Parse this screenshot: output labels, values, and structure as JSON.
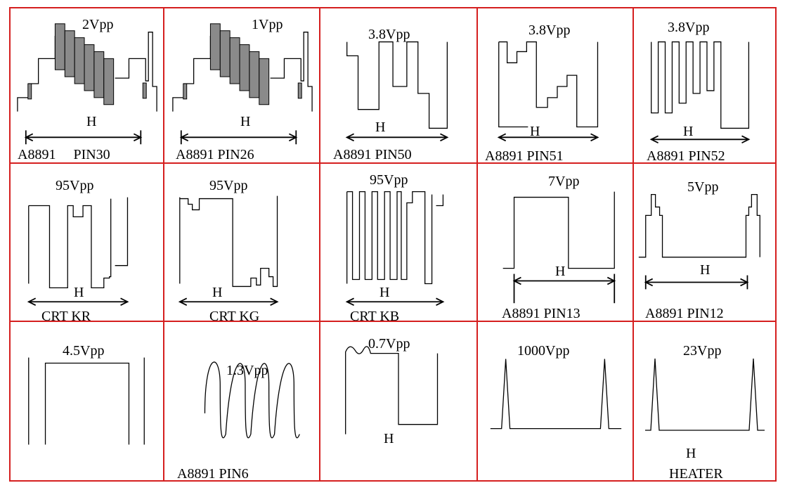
{
  "colors": {
    "grid_border": "#d51f1f",
    "waveform": "#000000",
    "burst_fill": "#8a8a8a"
  },
  "cells": [
    {
      "amplitude": "2Vpp",
      "h_marker": "H",
      "label": "A8891     PIN30"
    },
    {
      "amplitude": "1Vpp",
      "h_marker": "H",
      "label": "A8891 PIN26"
    },
    {
      "amplitude": "3.8Vpp",
      "h_marker": "H",
      "label": "A8891 PIN50"
    },
    {
      "amplitude": "3.8Vpp",
      "h_marker": "H",
      "label": "A8891 PIN51"
    },
    {
      "amplitude": "3.8Vpp",
      "h_marker": "H",
      "label": "A8891 PIN52"
    },
    {
      "amplitude": "95Vpp",
      "h_marker": "H",
      "label": "CRT KR"
    },
    {
      "amplitude": "95Vpp",
      "h_marker": "H",
      "label": "CRT KG"
    },
    {
      "amplitude": "95Vpp",
      "h_marker": "H",
      "label": "CRT KB"
    },
    {
      "amplitude": "7Vpp",
      "h_marker": "H",
      "label": "A8891 PIN13"
    },
    {
      "amplitude": "5Vpp",
      "h_marker": "H",
      "label": "A8891 PIN12"
    },
    {
      "amplitude": "4.5Vpp"
    },
    {
      "amplitude": "1.3Vpp",
      "label": "A8891 PIN6"
    },
    {
      "amplitude": "0.7Vpp",
      "h_marker": "H"
    },
    {
      "amplitude": "1000Vpp"
    },
    {
      "amplitude": "23Vpp",
      "h_marker": "H",
      "label": "HEATER"
    }
  ]
}
